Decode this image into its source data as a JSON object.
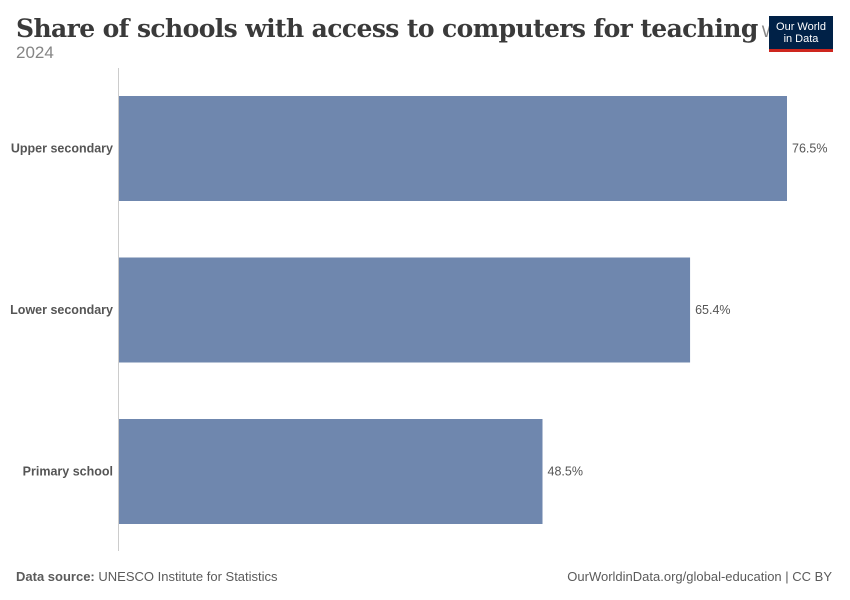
{
  "header": {
    "title": "Share of schools with access to computers for teaching",
    "subtitle": "World, 2024"
  },
  "logo": {
    "line1": "Our World",
    "line2": "in Data"
  },
  "footer": {
    "source_prefix": "Data source:",
    "source": "UNESCO Institute for Statistics",
    "url": "OurWorldinData.org/global-education | CC BY"
  },
  "colors": {
    "bar": "#6f87ae",
    "axis": "#cccccc",
    "logo_bg": "#002147",
    "logo_accent": "#ce261e"
  },
  "chart_data": {
    "type": "bar",
    "orientation": "horizontal",
    "categories": [
      "Upper secondary",
      "Lower secondary",
      "Primary school"
    ],
    "values": [
      76.5,
      65.4,
      48.5
    ],
    "value_labels": [
      "76.5%",
      "65.4%",
      "48.5%"
    ],
    "unit": "%",
    "xlim": [
      0,
      76.5
    ],
    "grid": false
  }
}
